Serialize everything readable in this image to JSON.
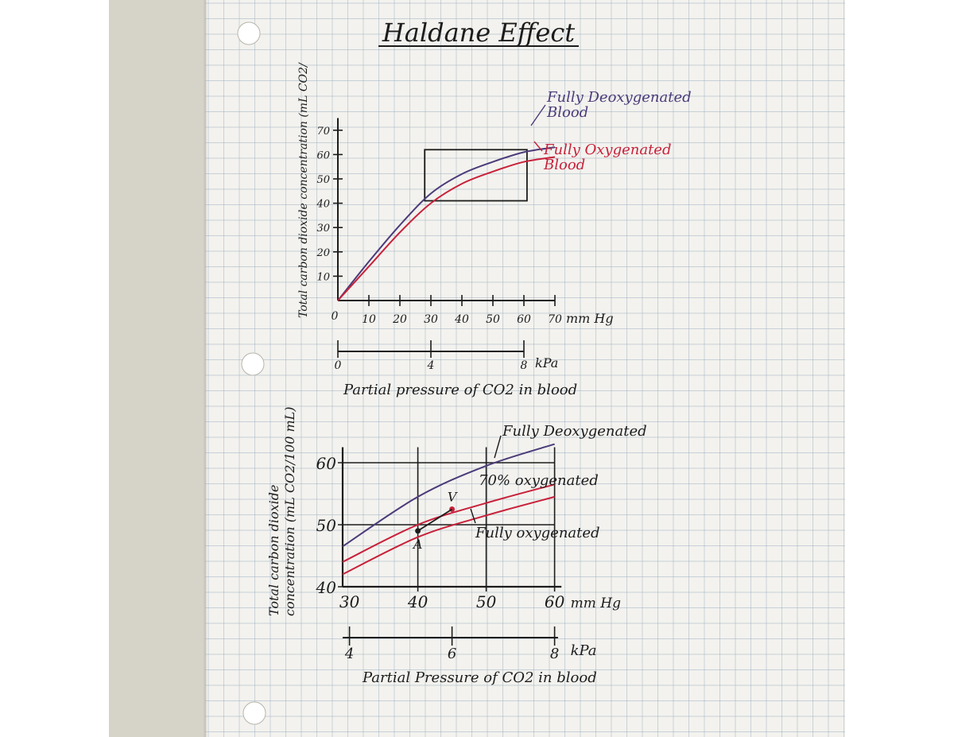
{
  "page": {
    "title": "Haldane Effect",
    "colors": {
      "desk": "#d6d3c9",
      "paper": "#f3f2ee",
      "grid": "#9fb0c2",
      "ink": "#1c1c1c",
      "purple": "#4b3b7a",
      "red": "#c8213a"
    }
  },
  "chart_data": [
    {
      "type": "line",
      "title": "Haldane Effect",
      "ylabel": "Total carbon dioxide concentration (mL CO2/",
      "xlabel": "Partial pressure of CO2 in blood",
      "x_unit": "mm Hg",
      "secondary_axis_unit": "kPa",
      "xlim": [
        0,
        70
      ],
      "ylim": [
        0,
        70
      ],
      "x_ticks": [
        "10",
        "20",
        "30",
        "40",
        "50",
        "60",
        "70"
      ],
      "x_origin_label": "0",
      "y_ticks": [
        "10",
        "20",
        "30",
        "40",
        "50",
        "60",
        "70"
      ],
      "kpa_ticks": [
        {
          "mmhg": 0,
          "label": "0"
        },
        {
          "mmhg": 30,
          "label": "4"
        },
        {
          "mmhg": 60,
          "label": "8"
        }
      ],
      "series": [
        {
          "name": "Fully Deoxygenated Blood",
          "color": "#4b3b7a",
          "x": [
            0,
            10,
            20,
            30,
            40,
            50,
            60,
            70
          ],
          "y": [
            0,
            16,
            31,
            44,
            52,
            57,
            61,
            63
          ]
        },
        {
          "name": "Fully Oxygenated Blood",
          "color": "#c8213a",
          "x": [
            0,
            10,
            20,
            30,
            40,
            50,
            60,
            70
          ],
          "y": [
            0,
            14,
            28,
            40,
            48,
            53,
            57,
            59
          ]
        }
      ],
      "zoom_box": {
        "x": [
          28,
          61
        ],
        "y": [
          41,
          62
        ]
      },
      "legend": [
        {
          "lines": [
            "Fully Deoxygenated",
            "Blood"
          ],
          "color": "#4b3b7a"
        },
        {
          "lines": [
            "Fully Oxygenated",
            "Blood"
          ],
          "color": "#c8213a"
        }
      ]
    },
    {
      "type": "line",
      "ylabel_lines": [
        "Total carbon dioxide",
        "concentration (mL CO2/100 mL)"
      ],
      "xlabel": "Partial Pressure of CO2 in blood",
      "x_unit": "mm Hg",
      "secondary_axis_unit": "kPa",
      "xlim": [
        29,
        60
      ],
      "ylim": [
        40,
        62
      ],
      "x_ticks": [
        "30",
        "40",
        "50",
        "60"
      ],
      "y_ticks": [
        "40",
        "50",
        "60"
      ],
      "kpa_ticks": [
        {
          "mmhg": 30,
          "label": "4"
        },
        {
          "mmhg": 45,
          "label": "6"
        },
        {
          "mmhg": 60,
          "label": "8"
        }
      ],
      "series": [
        {
          "name": "Fully Deoxygenated",
          "color": "#4b3b7a",
          "x": [
            29,
            40,
            50,
            60
          ],
          "y": [
            46.5,
            54.5,
            59.5,
            63
          ]
        },
        {
          "name": "70% oxygenated",
          "color": "#c8213a",
          "x": [
            29,
            40,
            50,
            60
          ],
          "y": [
            44,
            50,
            53.5,
            56.5
          ]
        },
        {
          "name": "Fully oxygenated",
          "color": "#c8213a",
          "x": [
            29,
            40,
            50,
            60
          ],
          "y": [
            42,
            48,
            51.5,
            54.5
          ]
        }
      ],
      "points": [
        {
          "label": "A",
          "x": 40,
          "y": 49
        },
        {
          "label": "V",
          "x": 45,
          "y": 52.5
        }
      ]
    }
  ]
}
